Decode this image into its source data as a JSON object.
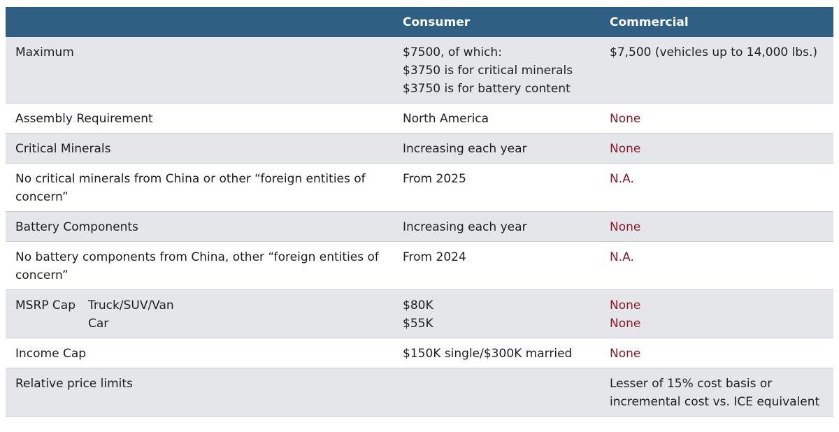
{
  "table": {
    "header": {
      "columns": [
        "Consumer",
        "Commercial"
      ]
    },
    "highlight_color": "#8b1a2b",
    "rows": [
      {
        "label": [
          "Maximum"
        ],
        "consumer": [
          "$7500, of which:",
          "$3750 is for critical minerals",
          "$3750 is for battery content"
        ],
        "commercial": [
          "$7,500 (vehicles up to 14,000 lbs.)"
        ]
      },
      {
        "label": [
          "Assembly Requirement"
        ],
        "consumer": [
          "North America"
        ],
        "commercial": [
          "None"
        ],
        "highlight": true
      },
      {
        "label": [
          "Critical Minerals"
        ],
        "consumer": [
          "Increasing each year"
        ],
        "commercial": [
          "None"
        ],
        "highlight": true
      },
      {
        "label": [
          "No critical minerals from China or other “foreign entities of concern”"
        ],
        "consumer": [
          "From 2025"
        ],
        "commercial": [
          "N.A."
        ],
        "highlight": true
      },
      {
        "label": [
          "Battery Components"
        ],
        "consumer": [
          "Increasing each year"
        ],
        "commercial": [
          "None"
        ],
        "highlight": true
      },
      {
        "label": [
          "No battery components from China, other “foreign entities of concern”"
        ],
        "consumer": [
          "From 2024"
        ],
        "commercial": [
          "N.A."
        ],
        "highlight": true
      },
      {
        "label": [
          "MSRP Cap"
        ],
        "sublabels": [
          "Truck/SUV/Van",
          "Car"
        ],
        "consumer": [
          "$80K",
          "$55K"
        ],
        "commercial": [
          "None",
          "None"
        ],
        "highlight": true
      },
      {
        "label": [
          "Income Cap"
        ],
        "consumer": [
          "$150K single/$300K married"
        ],
        "commercial": [
          "None"
        ],
        "highlight": true
      },
      {
        "label": [
          "Relative price limits"
        ],
        "commercial": [
          "Lesser of 15% cost basis or",
          "incremental cost vs. ICE equivalent"
        ]
      }
    ]
  }
}
